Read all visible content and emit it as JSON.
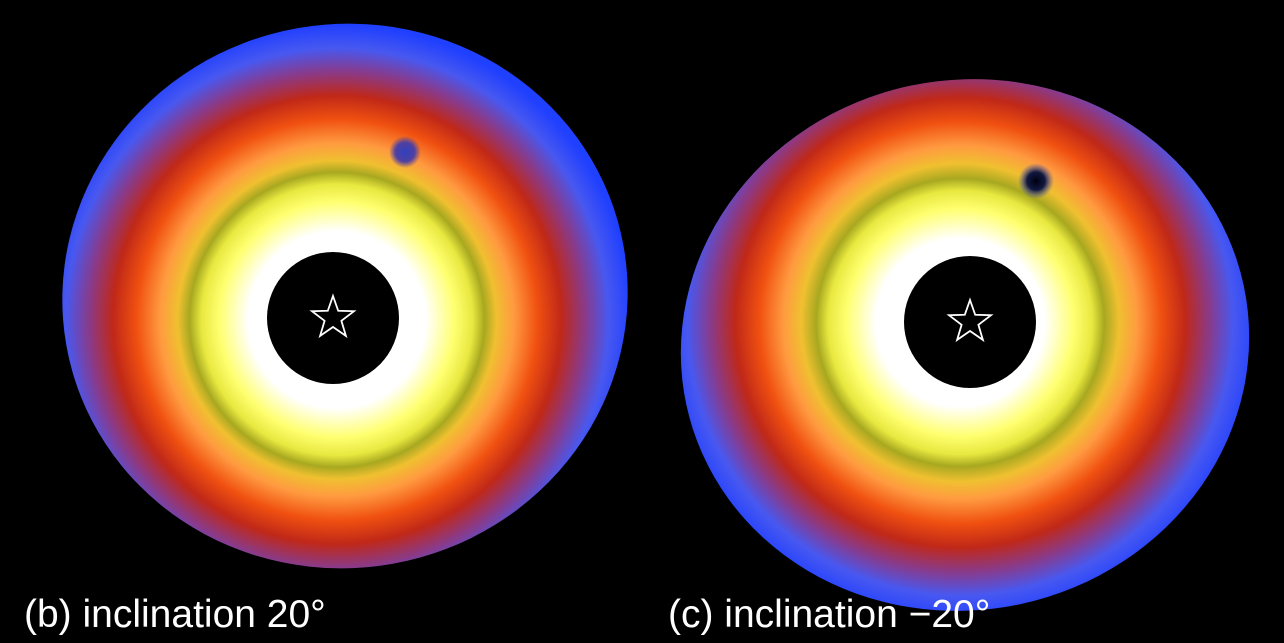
{
  "panels": [
    {
      "label": "(b) inclination 20°"
    },
    {
      "label": "(c) inclination −20°"
    }
  ]
}
